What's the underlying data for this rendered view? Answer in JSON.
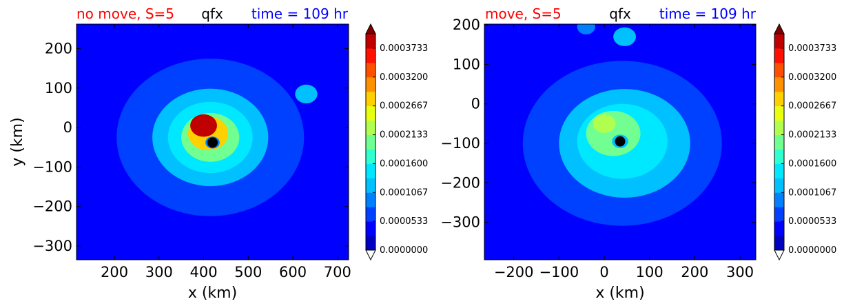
{
  "panels": [
    {
      "title_left": "no move, S=5",
      "title_center": "qfx",
      "title_right": "time = 109 hr",
      "title_left_color": "#ff0000",
      "title_center_color": "#000000",
      "title_right_color": "#0000ff"
    },
    {
      "title_left": "move, S=5",
      "title_center": "qfx",
      "title_right": "time = 109 hr",
      "title_left_color": "#ff0000",
      "title_center_color": "#000000",
      "title_right_color": "#0000ff"
    }
  ],
  "colorbar": {
    "tick_labels": [
      "0.0000000",
      "0.0000533",
      "0.0001067",
      "0.0001600",
      "0.0002133",
      "0.0002667",
      "0.0003200",
      "0.0003733"
    ],
    "colors": [
      "#00007f",
      "#0000c0",
      "#0000ff",
      "#0040ff",
      "#0080ff",
      "#00c0ff",
      "#00e8ff",
      "#30ffd0",
      "#70ff90",
      "#b0ff50",
      "#e8ff10",
      "#ffd000",
      "#ff9000",
      "#ff5000",
      "#ff1000",
      "#c00000",
      "#7f0000"
    ]
  },
  "chart_data": [
    {
      "type": "heatmap",
      "variable": "qfx",
      "xlabel": "x (km)",
      "ylabel": "y (km)",
      "xlim": [
        115,
        725
      ],
      "ylim": [
        -335,
        262
      ],
      "xticks": [
        200,
        300,
        400,
        500,
        600,
        700
      ],
      "yticks": [
        -300,
        -200,
        -100,
        0,
        100,
        200
      ],
      "xtick_labels": [
        "200",
        "300",
        "400",
        "500",
        "600",
        "700"
      ],
      "ytick_labels": [
        "−300",
        "−200",
        "−100",
        "0",
        "100",
        "200"
      ],
      "background_value": 4e-05,
      "features": [
        {
          "kind": "halo",
          "center": [
            415,
            -25
          ],
          "radius": 210,
          "value": 7e-05
        },
        {
          "kind": "ring",
          "center": [
            415,
            -25
          ],
          "radius": 130,
          "value": 0.00011
        },
        {
          "kind": "ring",
          "center": [
            415,
            -25
          ],
          "radius": 95,
          "value": 0.00015
        },
        {
          "kind": "ring",
          "center": [
            415,
            -25
          ],
          "radius": 65,
          "value": 0.0002
        },
        {
          "kind": "ring",
          "center": [
            410,
            -15
          ],
          "radius": 45,
          "value": 0.00029
        },
        {
          "kind": "core",
          "center": [
            400,
            5
          ],
          "radius": 30,
          "value": 0.00039
        },
        {
          "kind": "eye",
          "center": [
            420,
            -38
          ],
          "radius": 16,
          "value": 9e-05
        },
        {
          "kind": "patch",
          "center": [
            630,
            85
          ],
          "radius": 25,
          "value": 0.00012
        }
      ],
      "eye_marker": [
        420,
        -38
      ]
    },
    {
      "type": "heatmap",
      "variable": "qfx",
      "xlabel": "x (km)",
      "ylabel": "",
      "xlim": [
        -265,
        335
      ],
      "ylim": [
        -395,
        202
      ],
      "xticks": [
        -200,
        -100,
        0,
        100,
        200,
        300
      ],
      "yticks": [
        -300,
        -200,
        -100,
        0,
        100,
        200
      ],
      "xtick_labels": [
        "−200",
        "−100",
        "0",
        "100",
        "200",
        "300"
      ],
      "ytick_labels": [
        "−300",
        "−200",
        "−100",
        "0",
        "100",
        "200"
      ],
      "background_value": 4e-05,
      "features": [
        {
          "kind": "halo",
          "center": [
            40,
            -100
          ],
          "radius": 220,
          "value": 7e-05
        },
        {
          "kind": "ring",
          "center": [
            45,
            -100
          ],
          "radius": 145,
          "value": 0.00011
        },
        {
          "kind": "ring",
          "center": [
            40,
            -95
          ],
          "radius": 100,
          "value": 0.00015
        },
        {
          "kind": "ring",
          "center": [
            20,
            -75
          ],
          "radius": 60,
          "value": 0.0002
        },
        {
          "kind": "core",
          "center": [
            0,
            -50
          ],
          "radius": 25,
          "value": 0.00023
        },
        {
          "kind": "eye",
          "center": [
            35,
            -95
          ],
          "radius": 18,
          "value": 0.00012
        },
        {
          "kind": "patch",
          "center": [
            45,
            170
          ],
          "radius": 25,
          "value": 0.00011
        },
        {
          "kind": "patch",
          "center": [
            -40,
            195
          ],
          "radius": 20,
          "value": 9e-05
        }
      ],
      "eye_marker": [
        35,
        -95
      ]
    }
  ]
}
